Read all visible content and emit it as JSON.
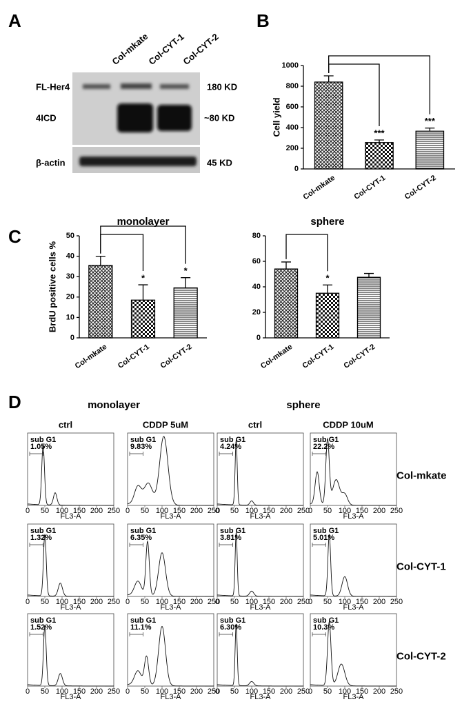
{
  "panel_labels": [
    "A",
    "B",
    "C",
    "D"
  ],
  "panel_A": {
    "lanes": [
      "Col-mkate",
      "Col-CYT-1",
      "Col-CYT-2"
    ],
    "rows": [
      "FL-Her4",
      "4ICD",
      "β-actin"
    ],
    "sizes": [
      "180 KD",
      "~80 KD",
      "45 KD"
    ]
  },
  "chart_data": [
    {
      "type": "bar",
      "y_label": "Cell yield",
      "categories": [
        "Col-mkate",
        "Col-CYT-1",
        "Col-CYT-2"
      ],
      "values": [
        840,
        255,
        365
      ],
      "errors": [
        60,
        25,
        30
      ],
      "star_labels": [
        null,
        "***",
        "***"
      ],
      "patterns": [
        "crosshatch",
        "checker",
        "hlines"
      ],
      "ylim": [
        0,
        1000
      ],
      "yticks": [
        0,
        200,
        400,
        600,
        800,
        1000
      ]
    },
    {
      "type": "bar",
      "title": "monolayer",
      "y_label": "BrdU positive cells %",
      "categories": [
        "Col-mkate",
        "Col-CYT-1",
        "Col-CYT-2"
      ],
      "values": [
        35.5,
        18.5,
        24.5
      ],
      "errors": [
        4.5,
        7.5,
        5
      ],
      "star_labels": [
        null,
        "*",
        "*"
      ],
      "patterns": [
        "crosshatch",
        "checker",
        "hlines"
      ],
      "ylim": [
        0,
        50
      ],
      "yticks": [
        0,
        10,
        20,
        30,
        40,
        50
      ]
    },
    {
      "type": "bar",
      "title": "sphere",
      "categories": [
        "Col-mkate",
        "Col-CYT-1",
        "Col-CYT-2"
      ],
      "values": [
        54,
        35,
        47.5
      ],
      "errors": [
        5.5,
        6.5,
        3
      ],
      "star_labels": [
        null,
        "*",
        null
      ],
      "patterns": [
        "crosshatch",
        "checker",
        "hlines"
      ],
      "ylim": [
        0,
        80
      ],
      "yticks": [
        0,
        20,
        40,
        60,
        80
      ]
    }
  ],
  "panel_D": {
    "groups": [
      "monolayer",
      "sphere"
    ],
    "conditions": [
      "ctrl",
      "CDDP 5uM",
      "ctrl",
      "CDDP 10uM"
    ],
    "rows": [
      "Col-mkate",
      "Col-CYT-1",
      "Col-CYT-2"
    ],
    "gate_label": "sub G1",
    "subg1": [
      [
        "1.05%",
        "9.83%",
        "4.24%",
        "22.2%"
      ],
      [
        "1.32%",
        "6.35%",
        "3.81%",
        "5.01%"
      ],
      [
        "1.52%",
        "11.1%",
        "6.30%",
        "10.3%"
      ]
    ],
    "axis_ticks": [
      0,
      50,
      100,
      150,
      200,
      250
    ],
    "axis_label": "FL3-A"
  }
}
